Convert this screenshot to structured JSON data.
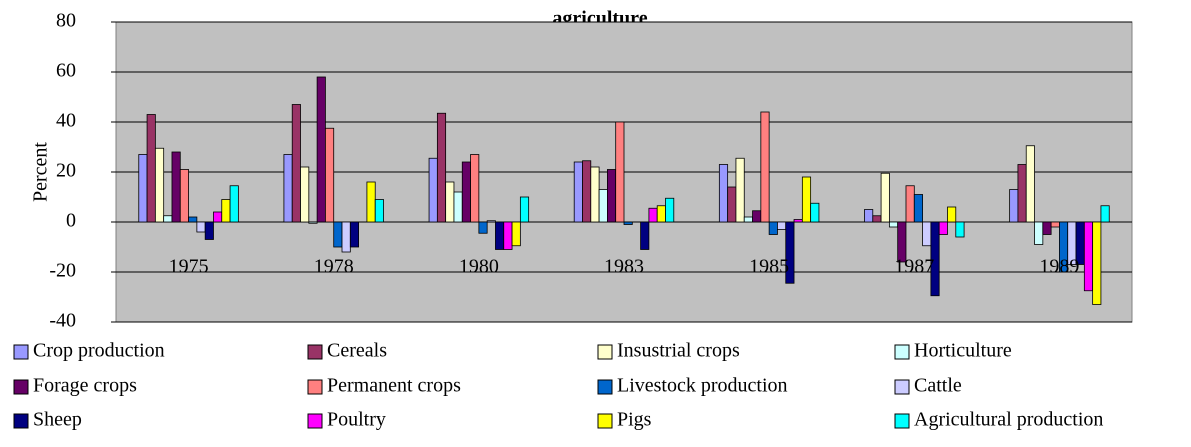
{
  "chart_data": {
    "type": "bar",
    "title": "agriculture",
    "y_label": "Percent",
    "categories": [
      "1975",
      "1978",
      "1980",
      "1983",
      "1985",
      "1987",
      "1989"
    ],
    "ylim": [
      -40,
      80
    ],
    "yticks": [
      -40,
      -20,
      0,
      20,
      40,
      60,
      80
    ],
    "grid": true,
    "series": [
      {
        "name": "Crop production",
        "color": "#9999ff",
        "values": [
          27,
          27,
          25.5,
          24,
          23,
          5,
          13
        ]
      },
      {
        "name": "Cereals",
        "color": "#993366",
        "values": [
          43,
          47,
          43.5,
          24.5,
          14,
          2.5,
          23
        ]
      },
      {
        "name": "Insustrial crops",
        "color": "#ffffcc",
        "values": [
          29.5,
          22,
          16,
          22,
          25.5,
          19.5,
          30.5
        ]
      },
      {
        "name": "Horticulture",
        "color": "#ccffff",
        "values": [
          2.5,
          -0.5,
          12,
          13,
          2,
          -2,
          -9
        ]
      },
      {
        "name": "Forage crops",
        "color": "#660066",
        "values": [
          28,
          58,
          24,
          21,
          4.5,
          -16,
          -5
        ]
      },
      {
        "name": "Permanent crops",
        "color": "#ff8080",
        "values": [
          21,
          37.5,
          27,
          40,
          44,
          14.5,
          -2
        ]
      },
      {
        "name": "Livestock production",
        "color": "#0066cc",
        "values": [
          2,
          -10,
          -4.5,
          -1,
          -5,
          11,
          -20
        ]
      },
      {
        "name": "Cattle",
        "color": "#ccccff",
        "values": [
          -4,
          -12,
          0.5,
          0,
          -3,
          -9.5,
          -17
        ]
      },
      {
        "name": "Sheep",
        "color": "#000080",
        "values": [
          -7,
          -10,
          -11,
          -11,
          -24.5,
          -29.5,
          -17
        ]
      },
      {
        "name": "Poultry",
        "color": "#ff00ff",
        "values": [
          4,
          0,
          -11,
          5.5,
          1,
          -5,
          -27.5
        ]
      },
      {
        "name": "Pigs",
        "color": "#ffff00",
        "values": [
          9,
          16,
          -9.5,
          6.5,
          18,
          6,
          -33
        ]
      },
      {
        "name": "Agricultural production",
        "color": "#00ffff",
        "values": [
          14.5,
          9,
          10,
          9.5,
          7.5,
          -6,
          6.5
        ]
      }
    ]
  }
}
